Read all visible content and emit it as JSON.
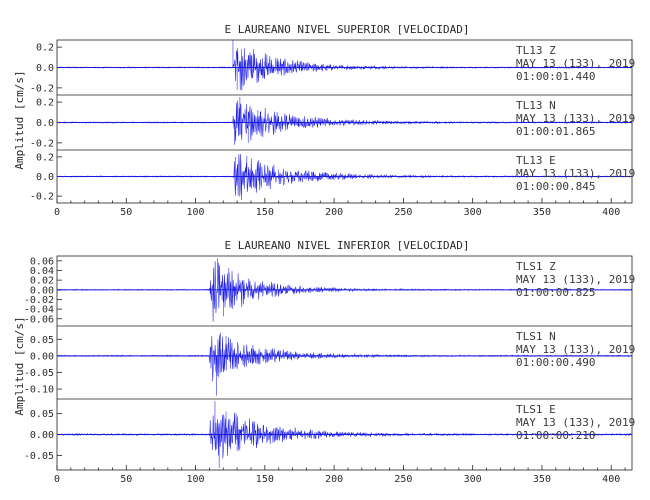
{
  "colors": {
    "trace": "#1a1ae6",
    "axis": "#222222",
    "text": "#2a2a2a"
  },
  "chart_data": [
    {
      "type": "line",
      "title": "E LAUREANO NIVEL SUPERIOR [VELOCIDAD]",
      "ylabel": "Amplitud [cm/s]",
      "xlim": [
        0,
        415
      ],
      "xticks": [
        "0",
        "50",
        "100",
        "150",
        "200",
        "250",
        "300",
        "350",
        "400"
      ],
      "traces": [
        {
          "station": "TL13",
          "component": "Z",
          "date": "MAY 13 (133), 2019",
          "time": "01:00:01.440",
          "ylim": [
            -0.27,
            0.27
          ],
          "yticks": [
            "0.2",
            "0.0",
            "-0.2"
          ],
          "onset": 127,
          "peak": 0.27,
          "coda_decay": 0.035,
          "noise": 0.006,
          "peaks": [
            [
              127,
              0.27
            ],
            [
              130,
              -0.22
            ],
            [
              133,
              0.18
            ],
            [
              140,
              0.12
            ],
            [
              150,
              0.06
            ],
            [
              175,
              0.02
            ]
          ]
        },
        {
          "station": "TL13",
          "component": "N",
          "date": "MAY 13 (133), 2019",
          "time": "01:00:01.865",
          "ylim": [
            -0.27,
            0.27
          ],
          "yticks": [
            "0.2",
            "0.0",
            "-0.2"
          ],
          "onset": 127,
          "peak": 0.25,
          "coda_decay": 0.03,
          "noise": 0.006,
          "peaks": [
            [
              128,
              -0.22
            ],
            [
              132,
              0.25
            ],
            [
              138,
              -0.2
            ],
            [
              145,
              0.12
            ],
            [
              160,
              0.06
            ],
            [
              185,
              0.02
            ]
          ]
        },
        {
          "station": "TL13",
          "component": "E",
          "date": "MAY 13 (133), 2019",
          "time": "01:00:00.845",
          "ylim": [
            -0.27,
            0.27
          ],
          "yticks": [
            "0.2",
            "0.0",
            "-0.2"
          ],
          "onset": 127,
          "peak": 0.25,
          "coda_decay": 0.03,
          "noise": 0.006,
          "peaks": [
            [
              129,
              0.2
            ],
            [
              133,
              -0.24
            ],
            [
              137,
              0.21
            ],
            [
              146,
              -0.14
            ],
            [
              160,
              0.07
            ],
            [
              185,
              0.02
            ]
          ]
        }
      ]
    },
    {
      "type": "line",
      "title": "E LAUREANO NIVEL INFERIOR [VELOCIDAD]",
      "ylabel": "Amplitud [cm/s]",
      "xlim": [
        0,
        415
      ],
      "xticks": [
        "0",
        "50",
        "100",
        "150",
        "200",
        "250",
        "300",
        "350",
        "400"
      ],
      "traces": [
        {
          "station": "TLS1",
          "component": "Z",
          "date": "MAY 13 (133), 2019",
          "time": "01:00:00.825",
          "ylim": [
            -0.075,
            0.07
          ],
          "yticks": [
            "0.06",
            "0.04",
            "0.02",
            "0.00",
            "-0.02",
            "-0.04",
            "-0.06"
          ],
          "onset": 110,
          "peak": 0.065,
          "coda_decay": 0.035,
          "noise": 0.0012,
          "peaks": [
            [
              116,
              0.065
            ],
            [
              120,
              -0.055
            ],
            [
              124,
              0.045
            ],
            [
              132,
              0.02
            ],
            [
              145,
              0.008
            ]
          ]
        },
        {
          "station": "TLS1",
          "component": "N",
          "date": "MAY 13 (133), 2019",
          "time": "01:00:00.490",
          "ylim": [
            -0.13,
            0.09
          ],
          "yticks": [
            "0.05",
            "0.00",
            "-0.05",
            "-0.10"
          ],
          "onset": 110,
          "peak": 0.075,
          "coda_decay": 0.032,
          "noise": 0.002,
          "peaks": [
            [
              115,
              -0.12
            ],
            [
              118,
              0.07
            ],
            [
              122,
              0.06
            ],
            [
              130,
              -0.04
            ],
            [
              142,
              0.02
            ],
            [
              165,
              0.01
            ]
          ]
        },
        {
          "station": "TLS1",
          "component": "E",
          "date": "MAY 13 (133), 2019",
          "time": "01:00:00.210",
          "ylim": [
            -0.085,
            0.085
          ],
          "yticks": [
            "0.05",
            "0.00",
            "-0.05"
          ],
          "onset": 110,
          "peak": 0.075,
          "coda_decay": 0.03,
          "noise": 0.002,
          "peaks": [
            [
              114,
              0.08
            ],
            [
              117,
              -0.08
            ],
            [
              122,
              0.055
            ],
            [
              130,
              -0.04
            ],
            [
              145,
              0.02
            ],
            [
              170,
              0.008
            ]
          ]
        }
      ]
    }
  ]
}
